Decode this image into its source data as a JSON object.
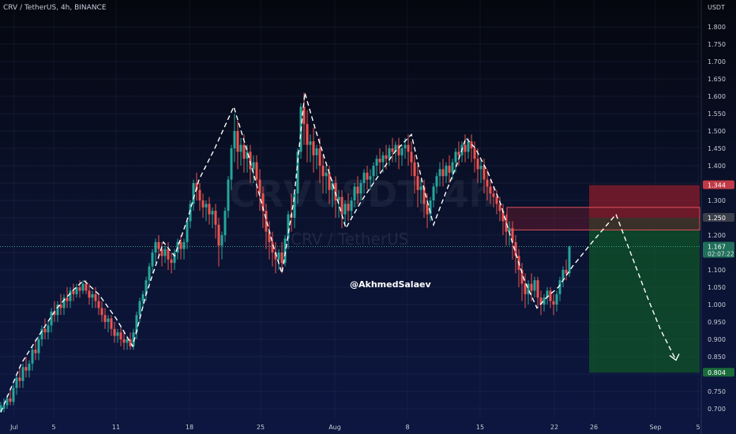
{
  "header": {
    "symbol_line": "CRV / TetherUS, 4h, BINANCE"
  },
  "axis_unit": "USDT",
  "watermark": {
    "ticker": "CRVUSDT, 4h",
    "pair": "CRV / TetherUS"
  },
  "author": "@AkhmedSalaev",
  "colors": {
    "up": "#26a69a",
    "down": "#ef5350",
    "dash": "#ffffff",
    "stop_zone": "#8b1c2b",
    "target_zone": "#0f5e25",
    "resistance_zone": "#6e1b2a",
    "price_label": "#1f6f5a"
  },
  "chart_data": {
    "type": "candlestick",
    "y_scale": [
      0.68,
      1.83
    ],
    "y_ticks": [
      "1.800",
      "1.750",
      "1.700",
      "1.650",
      "1.600",
      "1.550",
      "1.500",
      "1.450",
      "1.400",
      "1.350",
      "1.300",
      "1.250",
      "1.200",
      "1.150",
      "1.100",
      "1.050",
      "1.000",
      "0.950",
      "0.900",
      "0.850",
      "0.800",
      "0.750",
      "0.700"
    ],
    "x_ticks": [
      "Jul",
      "5",
      "11",
      "18",
      "25",
      "Aug",
      "8",
      "15",
      "22",
      "26",
      "Sep",
      "5"
    ],
    "price_labels": [
      {
        "price": 1.344,
        "text": "1.344",
        "color": "#c03a45"
      },
      {
        "price": 1.25,
        "text": "1.250",
        "color": "#3b3f4a"
      },
      {
        "price": 1.167,
        "text": "1.167",
        "sub": "02:07:22",
        "color": "#1f6f5a"
      },
      {
        "price": 0.804,
        "text": "0.804",
        "color": "#1a6b3a"
      }
    ],
    "current_price": 1.167,
    "position": {
      "entry": 1.25,
      "stop": 1.344,
      "target": 0.804
    },
    "resistance_zone": {
      "top": 1.28,
      "bottom": 1.215
    },
    "pattern_path": [
      [
        1,
        0.69
      ],
      [
        27,
        0.83
      ],
      [
        49,
        0.91
      ],
      [
        72,
        0.99
      ],
      [
        92,
        1.04
      ],
      [
        106,
        1.07
      ],
      [
        125,
        1.03
      ],
      [
        147,
        0.96
      ],
      [
        168,
        0.88
      ],
      [
        185,
        1.03
      ],
      [
        207,
        1.18
      ],
      [
        221,
        1.14
      ],
      [
        238,
        1.25
      ],
      [
        252,
        1.36
      ],
      [
        272,
        1.45
      ],
      [
        296,
        1.57
      ],
      [
        312,
        1.45
      ],
      [
        328,
        1.32
      ],
      [
        346,
        1.17
      ],
      [
        357,
        1.09
      ],
      [
        372,
        1.3
      ],
      [
        386,
        1.61
      ],
      [
        400,
        1.5
      ],
      [
        421,
        1.35
      ],
      [
        438,
        1.22
      ],
      [
        458,
        1.3
      ],
      [
        479,
        1.37
      ],
      [
        500,
        1.44
      ],
      [
        521,
        1.49
      ],
      [
        535,
        1.35
      ],
      [
        549,
        1.23
      ],
      [
        564,
        1.32
      ],
      [
        578,
        1.4
      ],
      [
        590,
        1.48
      ],
      [
        602,
        1.45
      ],
      [
        618,
        1.38
      ],
      [
        634,
        1.29
      ],
      [
        650,
        1.17
      ],
      [
        664,
        1.07
      ],
      [
        680,
        0.99
      ],
      [
        692,
        1.02
      ],
      [
        707,
        1.05
      ],
      [
        725,
        1.11
      ],
      [
        750,
        1.18
      ],
      [
        780,
        1.26
      ],
      [
        800,
        1.14
      ],
      [
        820,
        1.02
      ],
      [
        836,
        0.93
      ],
      [
        856,
        0.84
      ]
    ],
    "candles": [
      [
        1,
        0.69,
        0.72,
        0.71,
        0.7
      ],
      [
        5,
        0.7,
        0.73,
        0.71,
        0.69
      ],
      [
        9,
        0.71,
        0.74,
        0.73,
        0.7
      ],
      [
        13,
        0.73,
        0.76,
        0.72,
        0.71
      ],
      [
        17,
        0.72,
        0.77,
        0.76,
        0.71
      ],
      [
        21,
        0.76,
        0.8,
        0.79,
        0.74
      ],
      [
        25,
        0.79,
        0.82,
        0.78,
        0.76
      ],
      [
        29,
        0.78,
        0.83,
        0.82,
        0.76
      ],
      [
        33,
        0.82,
        0.85,
        0.81,
        0.79
      ],
      [
        37,
        0.81,
        0.84,
        0.83,
        0.79
      ],
      [
        41,
        0.83,
        0.88,
        0.87,
        0.81
      ],
      [
        45,
        0.87,
        0.9,
        0.86,
        0.84
      ],
      [
        49,
        0.86,
        0.91,
        0.9,
        0.84
      ],
      [
        53,
        0.9,
        0.94,
        0.93,
        0.88
      ],
      [
        57,
        0.93,
        0.96,
        0.92,
        0.9
      ],
      [
        61,
        0.92,
        0.95,
        0.94,
        0.9
      ],
      [
        65,
        0.94,
        0.99,
        0.98,
        0.92
      ],
      [
        69,
        0.98,
        1.01,
        0.97,
        0.95
      ],
      [
        73,
        0.97,
        1.01,
        1.0,
        0.95
      ],
      [
        77,
        1.0,
        1.03,
        0.99,
        0.97
      ],
      [
        81,
        0.99,
        1.03,
        1.02,
        0.97
      ],
      [
        85,
        1.02,
        1.05,
        1.01,
        0.99
      ],
      [
        89,
        1.01,
        1.05,
        1.04,
        0.99
      ],
      [
        93,
        1.04,
        1.06,
        1.03,
        1.01
      ],
      [
        97,
        1.03,
        1.06,
        1.05,
        1.02
      ],
      [
        101,
        1.05,
        1.07,
        1.04,
        1.02
      ],
      [
        105,
        1.04,
        1.07,
        1.06,
        1.03
      ],
      [
        109,
        1.06,
        1.07,
        1.04,
        1.03
      ],
      [
        113,
        1.04,
        1.06,
        1.02,
        1.0
      ],
      [
        117,
        1.02,
        1.04,
        1.03,
        0.99
      ],
      [
        121,
        1.03,
        1.05,
        1.01,
        0.99
      ],
      [
        125,
        1.01,
        1.03,
        0.99,
        0.97
      ],
      [
        129,
        0.99,
        1.01,
        0.97,
        0.95
      ],
      [
        133,
        0.97,
        0.99,
        0.95,
        0.93
      ],
      [
        137,
        0.95,
        0.97,
        0.96,
        0.92
      ],
      [
        141,
        0.96,
        0.97,
        0.93,
        0.91
      ],
      [
        145,
        0.93,
        0.95,
        0.91,
        0.89
      ],
      [
        149,
        0.91,
        0.93,
        0.92,
        0.89
      ],
      [
        153,
        0.92,
        0.94,
        0.9,
        0.88
      ],
      [
        157,
        0.9,
        0.92,
        0.89,
        0.87
      ],
      [
        161,
        0.89,
        0.91,
        0.9,
        0.87
      ],
      [
        165,
        0.9,
        0.92,
        0.88,
        0.87
      ],
      [
        169,
        0.88,
        0.93,
        0.92,
        0.87
      ],
      [
        173,
        0.92,
        0.98,
        0.97,
        0.9
      ],
      [
        177,
        0.97,
        1.02,
        1.01,
        0.95
      ],
      [
        181,
        1.01,
        1.04,
        1.03,
        0.99
      ],
      [
        185,
        1.03,
        1.08,
        1.07,
        1.01
      ],
      [
        189,
        1.07,
        1.12,
        1.11,
        1.05
      ],
      [
        193,
        1.11,
        1.16,
        1.15,
        1.09
      ],
      [
        197,
        1.15,
        1.19,
        1.18,
        1.12
      ],
      [
        201,
        1.18,
        1.2,
        1.16,
        1.13
      ],
      [
        205,
        1.16,
        1.18,
        1.14,
        1.11
      ],
      [
        209,
        1.14,
        1.17,
        1.16,
        1.12
      ],
      [
        213,
        1.16,
        1.18,
        1.13,
        1.1
      ],
      [
        217,
        1.13,
        1.15,
        1.12,
        1.09
      ],
      [
        221,
        1.12,
        1.16,
        1.15,
        1.1
      ],
      [
        225,
        1.15,
        1.19,
        1.18,
        1.13
      ],
      [
        229,
        1.18,
        1.2,
        1.16,
        1.13
      ],
      [
        233,
        1.16,
        1.19,
        1.18,
        1.13
      ],
      [
        237,
        1.18,
        1.25,
        1.24,
        1.16
      ],
      [
        241,
        1.24,
        1.3,
        1.29,
        1.22
      ],
      [
        245,
        1.29,
        1.36,
        1.35,
        1.27
      ],
      [
        249,
        1.35,
        1.38,
        1.33,
        1.3
      ],
      [
        253,
        1.33,
        1.35,
        1.3,
        1.27
      ],
      [
        257,
        1.3,
        1.32,
        1.28,
        1.25
      ],
      [
        261,
        1.28,
        1.3,
        1.29,
        1.24
      ],
      [
        265,
        1.29,
        1.31,
        1.26,
        1.23
      ],
      [
        269,
        1.26,
        1.28,
        1.27,
        1.22
      ],
      [
        273,
        1.27,
        1.29,
        1.23,
        1.19
      ],
      [
        277,
        1.23,
        1.25,
        1.17,
        1.11
      ],
      [
        281,
        1.17,
        1.21,
        1.2,
        1.13
      ],
      [
        285,
        1.2,
        1.28,
        1.27,
        1.18
      ],
      [
        289,
        1.27,
        1.37,
        1.36,
        1.25
      ],
      [
        293,
        1.36,
        1.46,
        1.45,
        1.33
      ],
      [
        297,
        1.45,
        1.55,
        1.5,
        1.41
      ],
      [
        301,
        1.5,
        1.53,
        1.44,
        1.39
      ],
      [
        305,
        1.44,
        1.48,
        1.46,
        1.4
      ],
      [
        309,
        1.46,
        1.49,
        1.42,
        1.38
      ],
      [
        313,
        1.42,
        1.46,
        1.44,
        1.38
      ],
      [
        317,
        1.44,
        1.46,
        1.39,
        1.35
      ],
      [
        321,
        1.39,
        1.43,
        1.41,
        1.35
      ],
      [
        325,
        1.41,
        1.43,
        1.36,
        1.31
      ],
      [
        329,
        1.36,
        1.39,
        1.32,
        1.27
      ],
      [
        333,
        1.32,
        1.34,
        1.27,
        1.22
      ],
      [
        337,
        1.27,
        1.29,
        1.21,
        1.16
      ],
      [
        341,
        1.21,
        1.24,
        1.18,
        1.13
      ],
      [
        345,
        1.18,
        1.21,
        1.15,
        1.11
      ],
      [
        349,
        1.15,
        1.18,
        1.13,
        1.09
      ],
      [
        353,
        1.13,
        1.16,
        1.15,
        1.1
      ],
      [
        357,
        1.15,
        1.18,
        1.12,
        1.09
      ],
      [
        361,
        1.12,
        1.2,
        1.19,
        1.11
      ],
      [
        365,
        1.19,
        1.27,
        1.26,
        1.16
      ],
      [
        369,
        1.26,
        1.32,
        1.25,
        1.21
      ],
      [
        373,
        1.25,
        1.33,
        1.32,
        1.22
      ],
      [
        377,
        1.32,
        1.45,
        1.44,
        1.29
      ],
      [
        381,
        1.44,
        1.58,
        1.57,
        1.42
      ],
      [
        385,
        1.57,
        1.61,
        1.52,
        1.46
      ],
      [
        389,
        1.52,
        1.56,
        1.46,
        1.41
      ],
      [
        393,
        1.46,
        1.49,
        1.47,
        1.41
      ],
      [
        397,
        1.47,
        1.51,
        1.43,
        1.38
      ],
      [
        401,
        1.43,
        1.46,
        1.45,
        1.39
      ],
      [
        405,
        1.45,
        1.48,
        1.4,
        1.35
      ],
      [
        409,
        1.4,
        1.43,
        1.37,
        1.32
      ],
      [
        413,
        1.37,
        1.4,
        1.38,
        1.32
      ],
      [
        417,
        1.38,
        1.4,
        1.33,
        1.29
      ],
      [
        421,
        1.33,
        1.36,
        1.35,
        1.28
      ],
      [
        425,
        1.35,
        1.37,
        1.3,
        1.25
      ],
      [
        429,
        1.3,
        1.33,
        1.31,
        1.25
      ],
      [
        433,
        1.31,
        1.33,
        1.26,
        1.22
      ],
      [
        437,
        1.26,
        1.3,
        1.29,
        1.23
      ],
      [
        441,
        1.29,
        1.32,
        1.27,
        1.24
      ],
      [
        445,
        1.27,
        1.31,
        1.3,
        1.25
      ],
      [
        449,
        1.3,
        1.35,
        1.34,
        1.28
      ],
      [
        453,
        1.34,
        1.37,
        1.32,
        1.29
      ],
      [
        457,
        1.32,
        1.36,
        1.35,
        1.3
      ],
      [
        461,
        1.35,
        1.39,
        1.38,
        1.32
      ],
      [
        465,
        1.38,
        1.4,
        1.36,
        1.33
      ],
      [
        469,
        1.36,
        1.39,
        1.37,
        1.33
      ],
      [
        473,
        1.37,
        1.41,
        1.4,
        1.35
      ],
      [
        477,
        1.4,
        1.43,
        1.42,
        1.37
      ],
      [
        481,
        1.42,
        1.45,
        1.41,
        1.38
      ],
      [
        485,
        1.41,
        1.44,
        1.43,
        1.38
      ],
      [
        489,
        1.43,
        1.46,
        1.42,
        1.39
      ],
      [
        493,
        1.42,
        1.46,
        1.45,
        1.4
      ],
      [
        497,
        1.45,
        1.48,
        1.44,
        1.41
      ],
      [
        501,
        1.44,
        1.47,
        1.46,
        1.41
      ],
      [
        505,
        1.46,
        1.48,
        1.43,
        1.39
      ],
      [
        509,
        1.43,
        1.46,
        1.45,
        1.4
      ],
      [
        513,
        1.45,
        1.48,
        1.46,
        1.42
      ],
      [
        517,
        1.46,
        1.49,
        1.44,
        1.4
      ],
      [
        521,
        1.44,
        1.47,
        1.41,
        1.37
      ],
      [
        525,
        1.41,
        1.43,
        1.37,
        1.32
      ],
      [
        529,
        1.37,
        1.4,
        1.33,
        1.28
      ],
      [
        533,
        1.33,
        1.36,
        1.34,
        1.29
      ],
      [
        537,
        1.34,
        1.36,
        1.29,
        1.25
      ],
      [
        541,
        1.29,
        1.32,
        1.26,
        1.22
      ],
      [
        545,
        1.26,
        1.31,
        1.3,
        1.24
      ],
      [
        549,
        1.3,
        1.35,
        1.34,
        1.28
      ],
      [
        553,
        1.34,
        1.38,
        1.37,
        1.32
      ],
      [
        557,
        1.37,
        1.41,
        1.39,
        1.34
      ],
      [
        561,
        1.39,
        1.42,
        1.37,
        1.34
      ],
      [
        565,
        1.37,
        1.41,
        1.4,
        1.35
      ],
      [
        569,
        1.4,
        1.43,
        1.38,
        1.35
      ],
      [
        573,
        1.38,
        1.42,
        1.41,
        1.36
      ],
      [
        577,
        1.41,
        1.45,
        1.44,
        1.38
      ],
      [
        581,
        1.44,
        1.47,
        1.43,
        1.4
      ],
      [
        585,
        1.43,
        1.47,
        1.46,
        1.41
      ],
      [
        589,
        1.46,
        1.49,
        1.44,
        1.41
      ],
      [
        593,
        1.44,
        1.48,
        1.47,
        1.42
      ],
      [
        597,
        1.47,
        1.49,
        1.45,
        1.41
      ],
      [
        601,
        1.45,
        1.47,
        1.42,
        1.38
      ],
      [
        605,
        1.42,
        1.45,
        1.39,
        1.35
      ],
      [
        609,
        1.39,
        1.42,
        1.4,
        1.35
      ],
      [
        613,
        1.4,
        1.42,
        1.36,
        1.32
      ],
      [
        617,
        1.36,
        1.39,
        1.34,
        1.3
      ],
      [
        621,
        1.34,
        1.36,
        1.32,
        1.29
      ],
      [
        625,
        1.32,
        1.34,
        1.31,
        1.28
      ],
      [
        629,
        1.31,
        1.33,
        1.29,
        1.26
      ],
      [
        633,
        1.29,
        1.31,
        1.27,
        1.24
      ],
      [
        637,
        1.27,
        1.29,
        1.24,
        1.2
      ],
      [
        641,
        1.24,
        1.26,
        1.21,
        1.17
      ],
      [
        645,
        1.21,
        1.24,
        1.22,
        1.17
      ],
      [
        649,
        1.22,
        1.24,
        1.18,
        1.13
      ],
      [
        653,
        1.18,
        1.2,
        1.14,
        1.09
      ],
      [
        657,
        1.14,
        1.16,
        1.1,
        1.05
      ],
      [
        661,
        1.1,
        1.12,
        1.06,
        1.01
      ],
      [
        665,
        1.06,
        1.09,
        1.03,
        0.99
      ],
      [
        669,
        1.03,
        1.07,
        1.06,
        1.0
      ],
      [
        673,
        1.06,
        1.09,
        1.04,
        1.01
      ],
      [
        677,
        1.04,
        1.08,
        1.07,
        1.02
      ],
      [
        681,
        1.07,
        1.08,
        1.02,
        0.99
      ],
      [
        685,
        1.02,
        1.04,
        1.0,
        0.97
      ],
      [
        689,
        1.0,
        1.03,
        1.02,
        0.98
      ],
      [
        693,
        1.02,
        1.05,
        1.04,
        1.0
      ],
      [
        697,
        1.04,
        1.05,
        1.01,
        0.99
      ],
      [
        701,
        1.01,
        1.03,
        1.0,
        0.97
      ],
      [
        705,
        1.0,
        1.04,
        1.03,
        0.98
      ],
      [
        709,
        1.03,
        1.08,
        1.07,
        1.01
      ],
      [
        713,
        1.07,
        1.11,
        1.1,
        1.05
      ],
      [
        717,
        1.1,
        1.13,
        1.09,
        1.07
      ],
      [
        721,
        1.09,
        1.17,
        1.167,
        1.08
      ]
    ]
  }
}
